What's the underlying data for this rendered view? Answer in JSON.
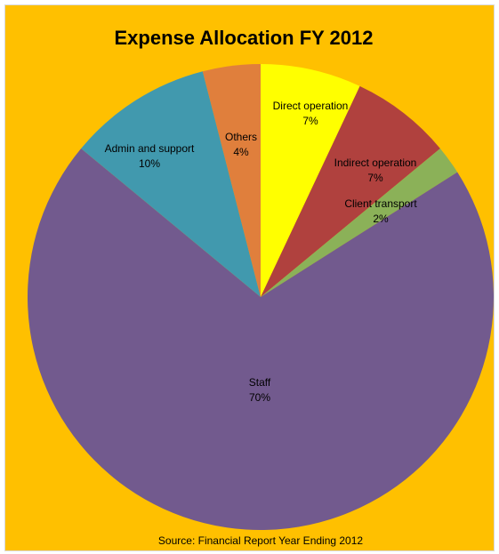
{
  "background_color": "#FFC000",
  "chart_data": {
    "type": "pie",
    "title": "Expense Allocation FY 2012",
    "source": "Source: Financial Report Year Ending 2012",
    "start_angle_deg": 0,
    "direction": "clockwise",
    "slices": [
      {
        "label": "Direct operation",
        "percent_label": "7%",
        "value": 7,
        "color": "#FFFF00"
      },
      {
        "label": "Indirect operation",
        "percent_label": "7%",
        "value": 7,
        "color": "#B0413E"
      },
      {
        "label": "Client transport",
        "percent_label": "2%",
        "value": 2,
        "color": "#8BB158"
      },
      {
        "label": "Staff",
        "percent_label": "70%",
        "value": 70,
        "color": "#725A8E"
      },
      {
        "label": "Admin and support",
        "percent_label": "10%",
        "value": 10,
        "color": "#4199AE"
      },
      {
        "label": "Others",
        "percent_label": "4%",
        "value": 4,
        "color": "#E07F3C"
      }
    ]
  }
}
